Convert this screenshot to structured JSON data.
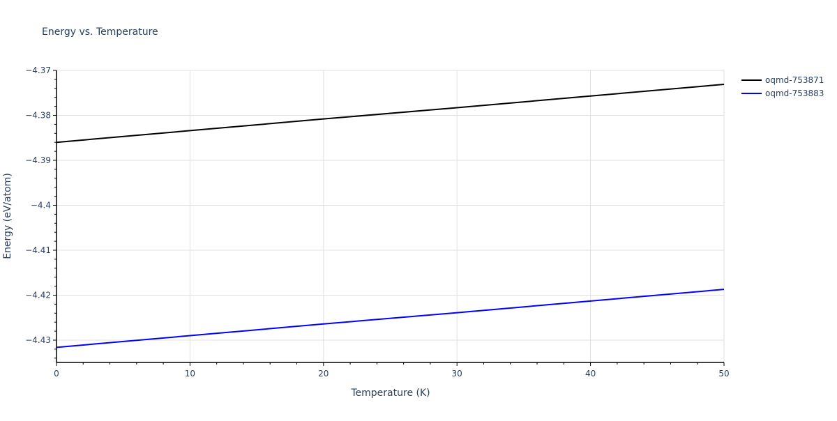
{
  "chart_data": {
    "type": "line",
    "title": "Energy vs. Temperature",
    "xlabel": "Temperature (K)",
    "ylabel": "Energy (eV/atom)",
    "xlim": [
      0,
      50
    ],
    "ylim": [
      -4.435,
      -4.37
    ],
    "grid": true,
    "legend_position": "right-top",
    "x_ticks": [
      0,
      10,
      20,
      30,
      40,
      50
    ],
    "x_tick_labels": [
      "0",
      "10",
      "20",
      "30",
      "40",
      "50"
    ],
    "y_ticks": [
      -4.37,
      -4.38,
      -4.39,
      -4.4,
      -4.41,
      -4.42,
      -4.43
    ],
    "y_tick_labels": [
      "−4.37",
      "−4.38",
      "−4.39",
      "−4.4",
      "−4.41",
      "−4.42",
      "−4.43"
    ],
    "series": [
      {
        "name": "oqmd-753871",
        "color": "#000000",
        "x": [
          0,
          10,
          20,
          30,
          40,
          50
        ],
        "values": [
          -4.386,
          -4.3834,
          -4.3808,
          -4.3783,
          -4.3757,
          -4.3731
        ]
      },
      {
        "name": "oqmd-753883",
        "color": "#0000ff",
        "x": [
          0,
          10,
          20,
          30,
          40,
          50
        ],
        "values": [
          -4.4316,
          -4.429,
          -4.4264,
          -4.4239,
          -4.4213,
          -4.4187
        ]
      }
    ]
  },
  "colors": {
    "grid": "#e0e0e0",
    "axis": "#000000",
    "text": "#2a3f5f",
    "background": "#ffffff"
  }
}
